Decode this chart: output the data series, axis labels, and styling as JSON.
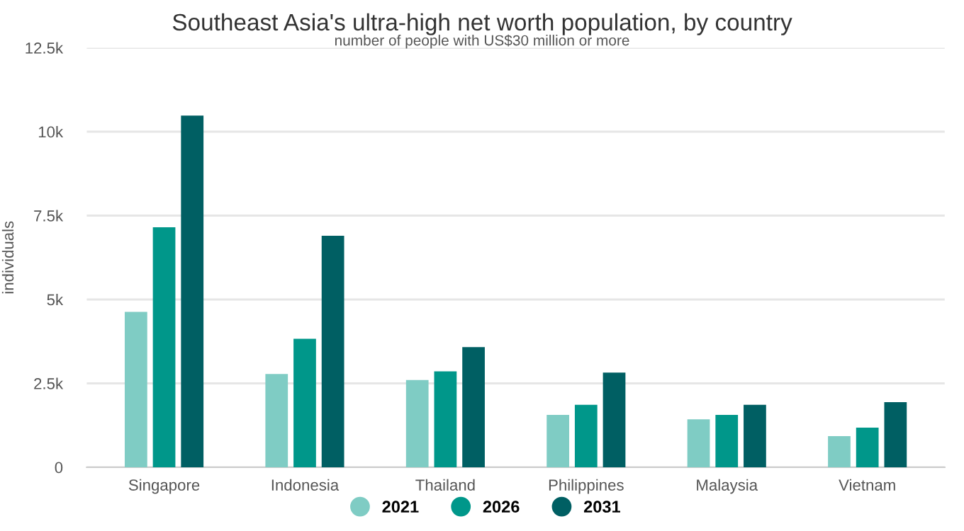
{
  "chart_data": {
    "type": "bar",
    "title": "Southeast Asia's ultra-high net worth population, by country",
    "subtitle": "number of people with US$30 million or more",
    "ylabel": "individuals",
    "categories": [
      "Singapore",
      "Indonesia",
      "Thailand",
      "Philippines",
      "Malaysia",
      "Vietnam"
    ],
    "series": [
      {
        "name": "2021",
        "color": "#7fccc4",
        "values": [
          4630,
          2780,
          2600,
          1560,
          1430,
          930
        ]
      },
      {
        "name": "2026",
        "color": "#00978a",
        "values": [
          7150,
          3830,
          2860,
          1860,
          1560,
          1180
        ]
      },
      {
        "name": "2031",
        "color": "#005f63",
        "values": [
          10480,
          6900,
          3580,
          2820,
          1860,
          1940
        ]
      }
    ],
    "ylim": [
      0,
      12500
    ],
    "yticks": [
      0,
      {
        "value": 2500,
        "label": "2.5k"
      },
      {
        "value": 5000,
        "label": "5k"
      },
      {
        "value": 7500,
        "label": "7.5k"
      },
      {
        "value": 10000,
        "label": "10k"
      },
      {
        "value": 12500,
        "label": "12.5k"
      }
    ],
    "grid": "y",
    "legend": "bottom"
  }
}
